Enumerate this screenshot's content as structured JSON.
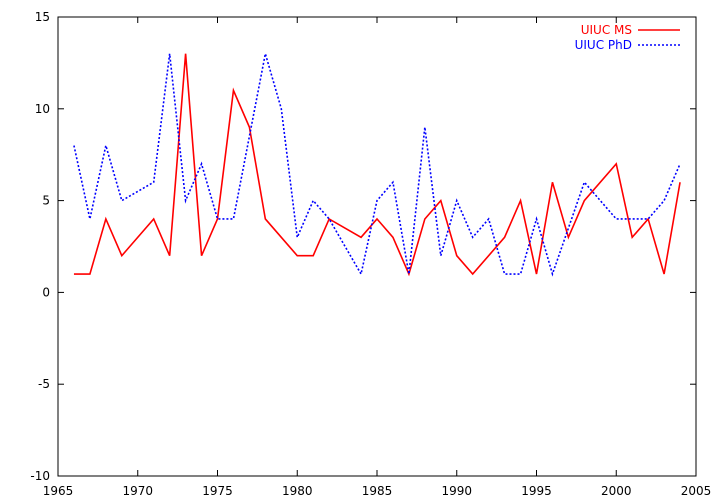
{
  "chart_data": {
    "type": "line",
    "title": "",
    "xlabel": "",
    "ylabel": "",
    "xlim": [
      1965,
      2005
    ],
    "ylim": [
      -10,
      15
    ],
    "x_ticks": [
      1965,
      1970,
      1975,
      1980,
      1985,
      1990,
      1995,
      2000,
      2005
    ],
    "y_ticks": [
      -10,
      -5,
      0,
      5,
      10,
      15
    ],
    "grid": false,
    "legend_position": "top-right",
    "series": [
      {
        "name": "UIUC MS",
        "color": "#ff0000",
        "style": "solid",
        "points": [
          [
            1966,
            1
          ],
          [
            1967,
            1
          ],
          [
            1968,
            4
          ],
          [
            1969,
            2
          ],
          [
            1971,
            4
          ],
          [
            1972,
            2
          ],
          [
            1973,
            13
          ],
          [
            1974,
            2
          ],
          [
            1975,
            4
          ],
          [
            1976,
            11
          ],
          [
            1977,
            9
          ],
          [
            1978,
            4
          ],
          [
            1980,
            2
          ],
          [
            1981,
            2
          ],
          [
            1982,
            4
          ],
          [
            1984,
            3
          ],
          [
            1985,
            4
          ],
          [
            1986,
            3
          ],
          [
            1987,
            1
          ],
          [
            1988,
            4
          ],
          [
            1989,
            5
          ],
          [
            1990,
            2
          ],
          [
            1991,
            1
          ],
          [
            1993,
            3
          ],
          [
            1994,
            5
          ],
          [
            1995,
            1
          ],
          [
            1996,
            6
          ],
          [
            1997,
            3
          ],
          [
            1998,
            5
          ],
          [
            2000,
            7
          ],
          [
            2001,
            3
          ],
          [
            2002,
            4
          ],
          [
            2003,
            1
          ],
          [
            2004,
            6
          ]
        ]
      },
      {
        "name": "UIUC PhD",
        "color": "#0000ff",
        "style": "dotted",
        "points": [
          [
            1966,
            8
          ],
          [
            1967,
            4
          ],
          [
            1968,
            8
          ],
          [
            1969,
            5
          ],
          [
            1971,
            6
          ],
          [
            1972,
            13
          ],
          [
            1973,
            5
          ],
          [
            1974,
            7
          ],
          [
            1975,
            4
          ],
          [
            1976,
            4
          ],
          [
            1978,
            13
          ],
          [
            1979,
            10
          ],
          [
            1980,
            3
          ],
          [
            1981,
            5
          ],
          [
            1982,
            4
          ],
          [
            1984,
            1
          ],
          [
            1985,
            5
          ],
          [
            1986,
            6
          ],
          [
            1987,
            1
          ],
          [
            1988,
            9
          ],
          [
            1989,
            2
          ],
          [
            1990,
            5
          ],
          [
            1991,
            3
          ],
          [
            1992,
            4
          ],
          [
            1993,
            1
          ],
          [
            1994,
            1
          ],
          [
            1995,
            4
          ],
          [
            1996,
            1
          ],
          [
            1998,
            6
          ],
          [
            2000,
            4
          ],
          [
            2002,
            4
          ],
          [
            2003,
            5
          ],
          [
            2004,
            7
          ]
        ]
      }
    ]
  }
}
